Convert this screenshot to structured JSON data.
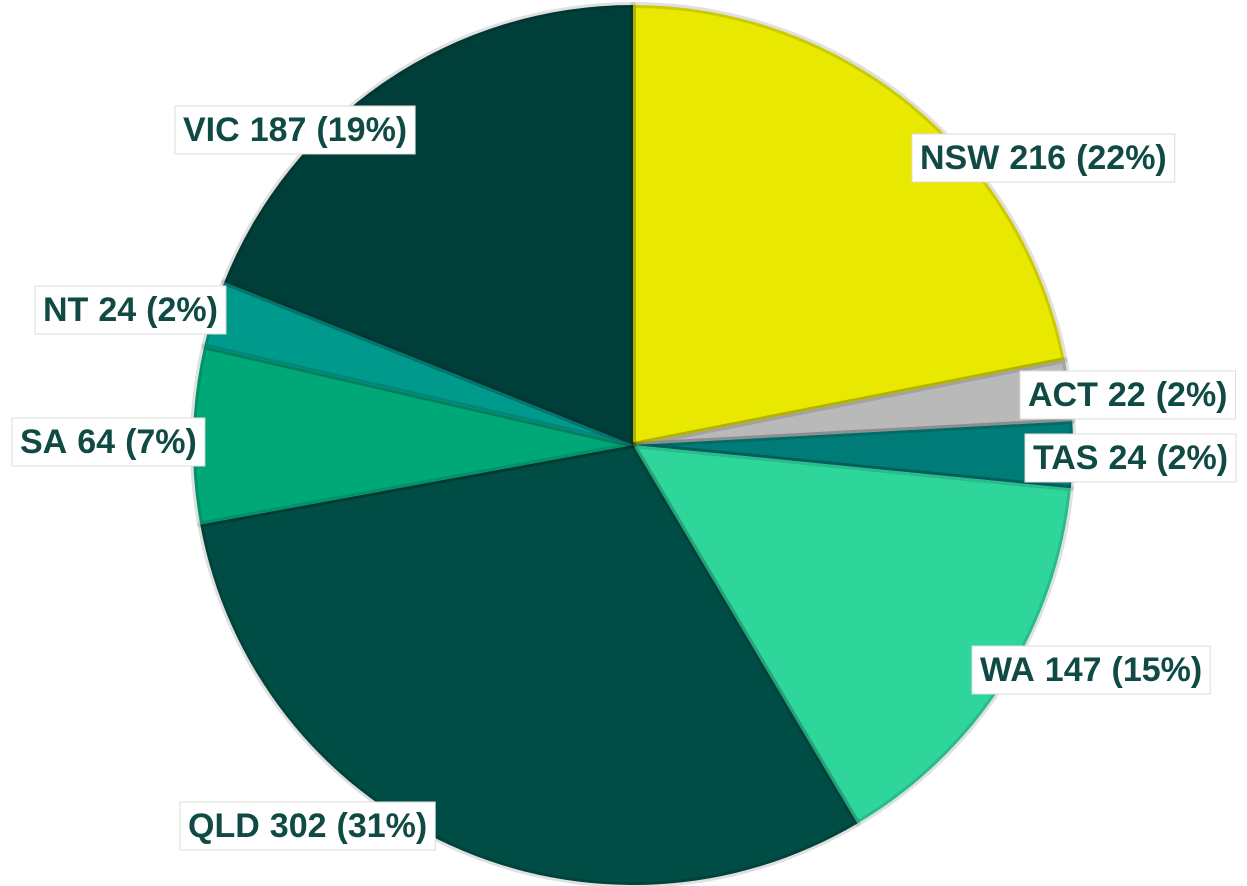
{
  "chart_data": {
    "type": "pie",
    "categories": [
      "NSW",
      "ACT",
      "TAS",
      "WA",
      "QLD",
      "SA",
      "NT",
      "VIC"
    ],
    "values": [
      216,
      22,
      24,
      147,
      302,
      64,
      24,
      187
    ],
    "percent_labels": [
      "(22%)",
      "(2%)",
      "(2%)",
      "(15%)",
      "(31%)",
      "(7%)",
      "(2%)",
      "(19%)"
    ],
    "colors": [
      "#e8e800",
      "#b9b9b9",
      "#007c78",
      "#2ed69c",
      "#004d45",
      "#00a878",
      "#009a8c",
      "#003f39"
    ]
  }
}
